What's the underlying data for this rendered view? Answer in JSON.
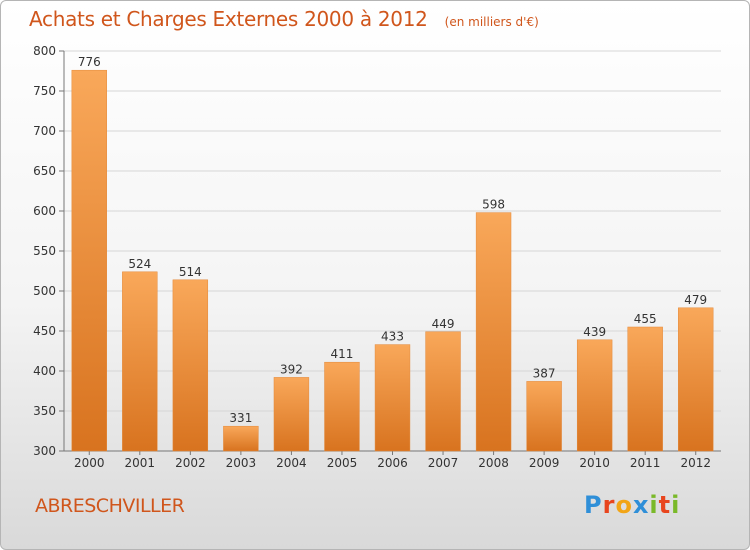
{
  "title": "Achats et Charges Externes 2000 à 2012",
  "subtitle": "(en milliers d'€)",
  "location": "ABRESCHVILLER",
  "brand": {
    "text": "Proxiti",
    "letter_colors": [
      "#2f8fd8",
      "#e8451e",
      "#f2a516",
      "#2f8fd8",
      "#7ab929",
      "#e8451e",
      "#7ab929"
    ]
  },
  "colors": {
    "bar_top": "#f9a85a",
    "bar_bottom": "#d8731f",
    "grid": "#d6d6d6",
    "axis": "#777777",
    "title": "#d0561c"
  },
  "chart_data": {
    "type": "bar",
    "categories": [
      "2000",
      "2001",
      "2002",
      "2003",
      "2004",
      "2005",
      "2006",
      "2007",
      "2008",
      "2009",
      "2010",
      "2011",
      "2012"
    ],
    "values": [
      776,
      524,
      514,
      331,
      392,
      411,
      433,
      449,
      598,
      387,
      439,
      455,
      479
    ],
    "ylim": [
      300,
      800
    ],
    "yticks": [
      300,
      350,
      400,
      450,
      500,
      550,
      600,
      650,
      700,
      750,
      800
    ],
    "grid": true,
    "legend": "none"
  }
}
